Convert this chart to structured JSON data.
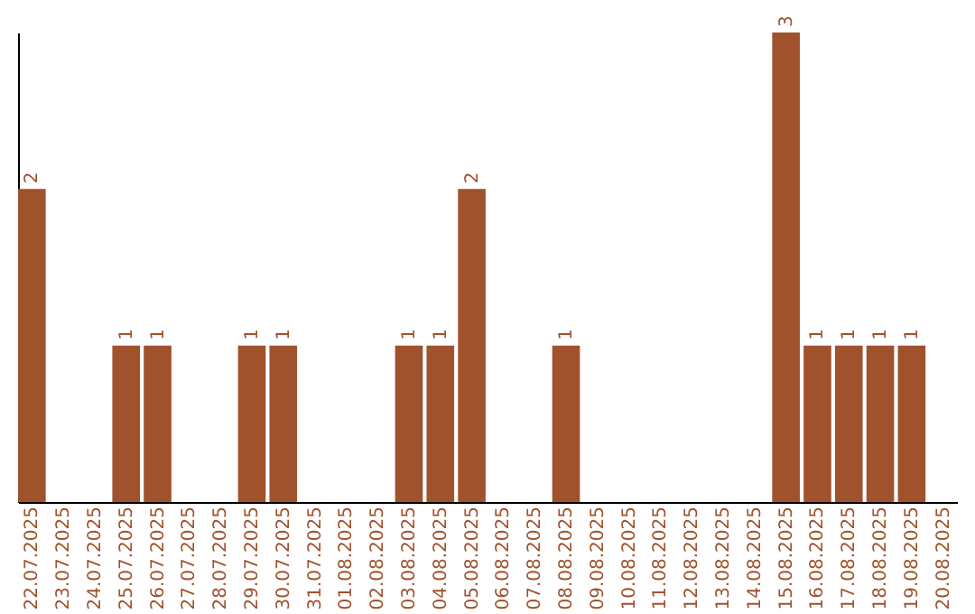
{
  "chart_data": {
    "type": "bar",
    "categories": [
      "22.07.2025",
      "23.07.2025",
      "24.07.2025",
      "25.07.2025",
      "26.07.2025",
      "27.07.2025",
      "28.07.2025",
      "29.07.2025",
      "30.07.2025",
      "31.07.2025",
      "01.08.2025",
      "02.08.2025",
      "03.08.2025",
      "04.08.2025",
      "05.08.2025",
      "06.08.2025",
      "07.08.2025",
      "08.08.2025",
      "09.08.2025",
      "10.08.2025",
      "11.08.2025",
      "12.08.2025",
      "13.08.2025",
      "14.08.2025",
      "15.08.2025",
      "16.08.2025",
      "17.08.2025",
      "18.08.2025",
      "19.08.2025",
      "20.08.2025"
    ],
    "values": [
      2,
      0,
      0,
      1,
      1,
      0,
      0,
      1,
      1,
      0,
      0,
      0,
      1,
      1,
      2,
      0,
      0,
      1,
      0,
      0,
      0,
      0,
      0,
      0,
      3,
      1,
      1,
      1,
      1,
      0
    ],
    "value_labels": [
      "2",
      null,
      null,
      "1",
      "1",
      null,
      null,
      "1",
      "1",
      null,
      null,
      null,
      "1",
      "1",
      "2",
      null,
      null,
      "1",
      null,
      null,
      null,
      null,
      null,
      null,
      "3",
      "1",
      "1",
      "1",
      "1",
      null
    ],
    "color": "#a0522d",
    "tick_labels": "x",
    "grid": false
  }
}
